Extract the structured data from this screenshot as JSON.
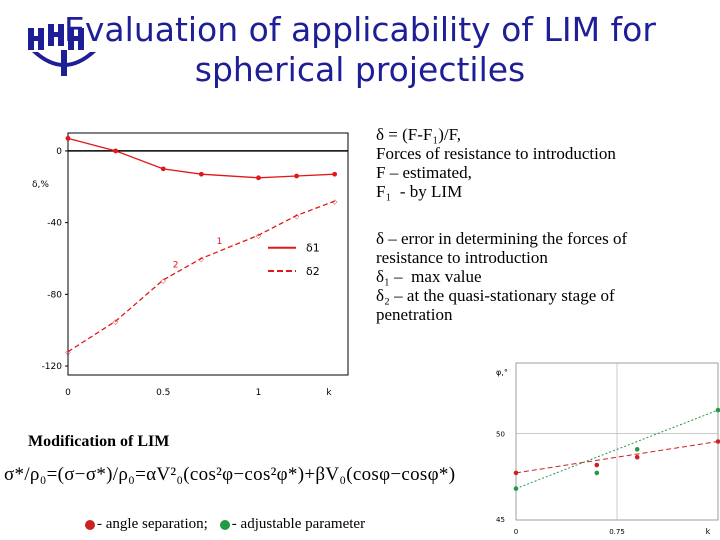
{
  "slide": {
    "title_line1": "Evaluation of applicability of LIM for",
    "title_line2": "spherical projectiles"
  },
  "definitions": {
    "lines": [
      "δ = (F-F₁)/F,",
      "Forces of resistance to introduction",
      "F – estimated,",
      "F₁  - by LIM"
    ],
    "lines2": [
      "δ – error in determining the forces of",
      "resistance to introduction",
      "δ₁ –  max value",
      "δ₂ – at the quasi-stationary stage of",
      "penetration"
    ]
  },
  "modification": {
    "title": "Modification of LIM",
    "formula": "σ*/ρ₀=(σ−σ*)/ρ₀=αV²₀(cos²φ−cos²φ*)+βV₀(cosφ−cosφ*)",
    "legend": [
      {
        "label": "- angle separation;",
        "color": "#cc2222"
      },
      {
        "label": "- adjustable parameter",
        "color": "#229944"
      }
    ]
  },
  "chart_data": [
    {
      "type": "line",
      "title": "",
      "xlabel": "k",
      "ylabel": "δ,%",
      "xlim": [
        0,
        1.47
      ],
      "ylim": [
        -125,
        10
      ],
      "x_ticks": [
        "0",
        "0.5",
        "1",
        "k"
      ],
      "y_ticks": [
        "0",
        "-40",
        "-80",
        "-120"
      ],
      "series": [
        {
          "name": "δ1",
          "style": "solid",
          "color": "#e01818",
          "x": [
            0,
            0.25,
            0.5,
            0.7,
            1.0,
            1.2,
            1.4
          ],
          "y": [
            7,
            0,
            -10,
            -13,
            -15,
            -14,
            -13
          ]
        },
        {
          "name": "δ2",
          "style": "dashed",
          "color": "#e01818",
          "x": [
            0,
            0.25,
            0.5,
            0.7,
            1.0,
            1.2,
            1.4
          ],
          "y": [
            -112,
            -95,
            -72,
            -60,
            -47,
            -36,
            -28
          ]
        }
      ],
      "annotations": [
        "1",
        "2"
      ],
      "legend": [
        "δ1",
        "δ2"
      ]
    },
    {
      "type": "scatter",
      "title": "",
      "xlabel": "k",
      "ylabel": "φ,°",
      "x_ticks": [
        "0",
        "0.75",
        "k"
      ],
      "y_ticks": [
        "50",
        "45"
      ],
      "series": [
        {
          "name": "",
          "color": "#cc2222",
          "style": "dashed",
          "x": [
            0,
            0.4,
            0.6,
            1.0
          ],
          "y": [
            0.3,
            0.35,
            0.4,
            0.5
          ]
        },
        {
          "name": "",
          "color": "#229944",
          "style": "dotted",
          "x": [
            0,
            0.4,
            0.6,
            1.0
          ],
          "y": [
            0.2,
            0.3,
            0.45,
            0.7
          ]
        }
      ]
    }
  ]
}
